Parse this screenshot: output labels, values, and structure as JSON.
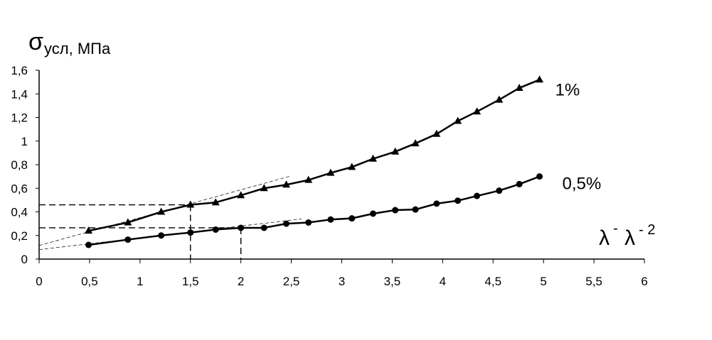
{
  "chart_data": {
    "type": "line",
    "y_label": {
      "symbol": "σ",
      "subscript": "усл, МПа"
    },
    "x_label": [
      "λ",
      "-",
      "λ",
      "- 2"
    ],
    "x": [
      0.49,
      0.88,
      1.21,
      1.5,
      1.75,
      2.0,
      2.23,
      2.45,
      2.67,
      2.89,
      3.1,
      3.31,
      3.53,
      3.73,
      3.94,
      4.15,
      4.34,
      4.56,
      4.76,
      4.96
    ],
    "series": [
      {
        "name": "1%",
        "color": "#000000",
        "marker": "triangle",
        "values": [
          0.24,
          0.31,
          0.4,
          0.46,
          0.48,
          0.54,
          0.6,
          0.63,
          0.67,
          0.73,
          0.78,
          0.85,
          0.91,
          0.98,
          1.06,
          1.17,
          1.25,
          1.35,
          1.45,
          1.52
        ]
      },
      {
        "name": "0,5%",
        "color": "#000000",
        "marker": "circle",
        "values": [
          0.12,
          0.165,
          0.2,
          0.225,
          0.25,
          0.265,
          0.265,
          0.3,
          0.31,
          0.335,
          0.345,
          0.385,
          0.415,
          0.42,
          0.47,
          0.495,
          0.535,
          0.58,
          0.635,
          0.7
        ]
      }
    ],
    "guides": [
      {
        "x": 1.5,
        "y": 0.46
      },
      {
        "x": 2.0,
        "y": 0.265
      }
    ],
    "tangents": [
      {
        "x": [
          0,
          2.5
        ],
        "y": [
          0.115,
          0.705
        ]
      },
      {
        "x": [
          0,
          2.6
        ],
        "y": [
          0.08,
          0.34
        ]
      }
    ],
    "xlim": [
      0,
      6
    ],
    "ylim": [
      0,
      1.6
    ],
    "xticks": [
      0,
      {
        "value": 0.5,
        "label": "0,5"
      },
      1,
      {
        "value": 1.5,
        "label": "1,5"
      },
      2,
      {
        "value": 2.5,
        "label": "2,5"
      },
      3,
      {
        "value": 3.5,
        "label": "3,5"
      },
      4,
      {
        "value": 4.5,
        "label": "4,5"
      },
      5,
      {
        "value": 5.5,
        "label": "5,5"
      },
      6
    ],
    "yticks": [
      0,
      {
        "value": 0.2,
        "label": "0,2"
      },
      {
        "value": 0.4,
        "label": "0,4"
      },
      {
        "value": 0.6,
        "label": "0,6"
      },
      {
        "value": 0.8,
        "label": "0,8"
      },
      1,
      {
        "value": 1.2,
        "label": "1,2"
      },
      {
        "value": 1.4,
        "label": "1,4"
      },
      {
        "value": 1.6,
        "label": "1,6"
      }
    ],
    "grid": false
  }
}
